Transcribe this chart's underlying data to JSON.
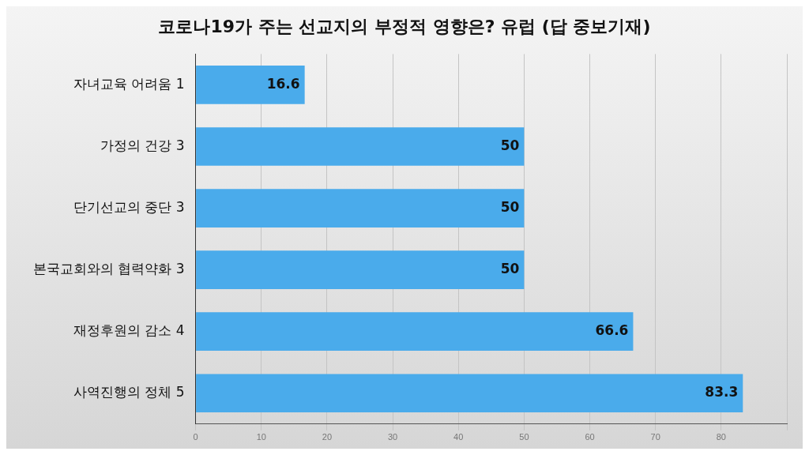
{
  "chart_data": {
    "type": "bar",
    "orientation": "horizontal",
    "title": "코로나19가 주는 선교지의 부정적 영향은? 유럽 (답 중보기재)",
    "categories": [
      "자녀교육 어려움 1",
      "가정의 건강 3",
      "단기선교의 중단 3",
      "본국교회와의 협력약화 3",
      "재정후원의 감소 4",
      "사역진행의 정체 5"
    ],
    "values": [
      16.6,
      50,
      50,
      50,
      66.6,
      83.3
    ],
    "color": "#4aabeb",
    "xlim": [
      0,
      90
    ],
    "xticks": [
      0,
      10,
      20,
      30,
      40,
      50,
      60,
      70,
      80,
      {
        "value": 90,
        "label": null
      }
    ],
    "grid": "x",
    "data_labels": true
  }
}
